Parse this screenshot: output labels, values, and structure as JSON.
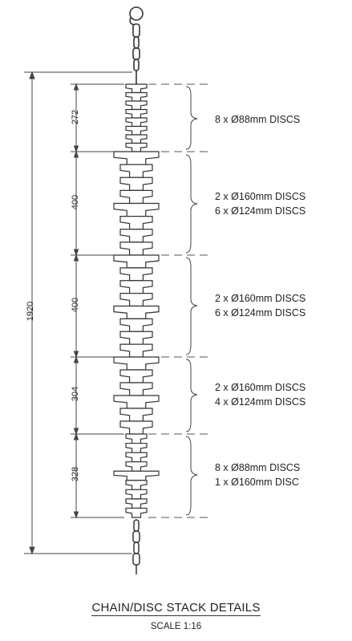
{
  "title": "CHAIN/DISC STACK DETAILS",
  "scale": "SCALE 1:16",
  "overall_dimension": "1920",
  "sections": [
    {
      "dimension": "272",
      "lines": [
        "8 x Ø88mm DISCS",
        ""
      ]
    },
    {
      "dimension": "400",
      "lines": [
        "2 x Ø160mm DISCS",
        "6 x Ø124mm DISCS"
      ]
    },
    {
      "dimension": "400",
      "lines": [
        "2 x Ø160mm DISCS",
        "6 x Ø124mm DISCS"
      ]
    },
    {
      "dimension": "304",
      "lines": [
        "2 x Ø160mm DISCS",
        "4 x Ø124mm DISCS"
      ]
    },
    {
      "dimension": "328",
      "lines": [
        "8 x Ø88mm DISCS",
        "1 x Ø160mm DISC"
      ]
    }
  ]
}
